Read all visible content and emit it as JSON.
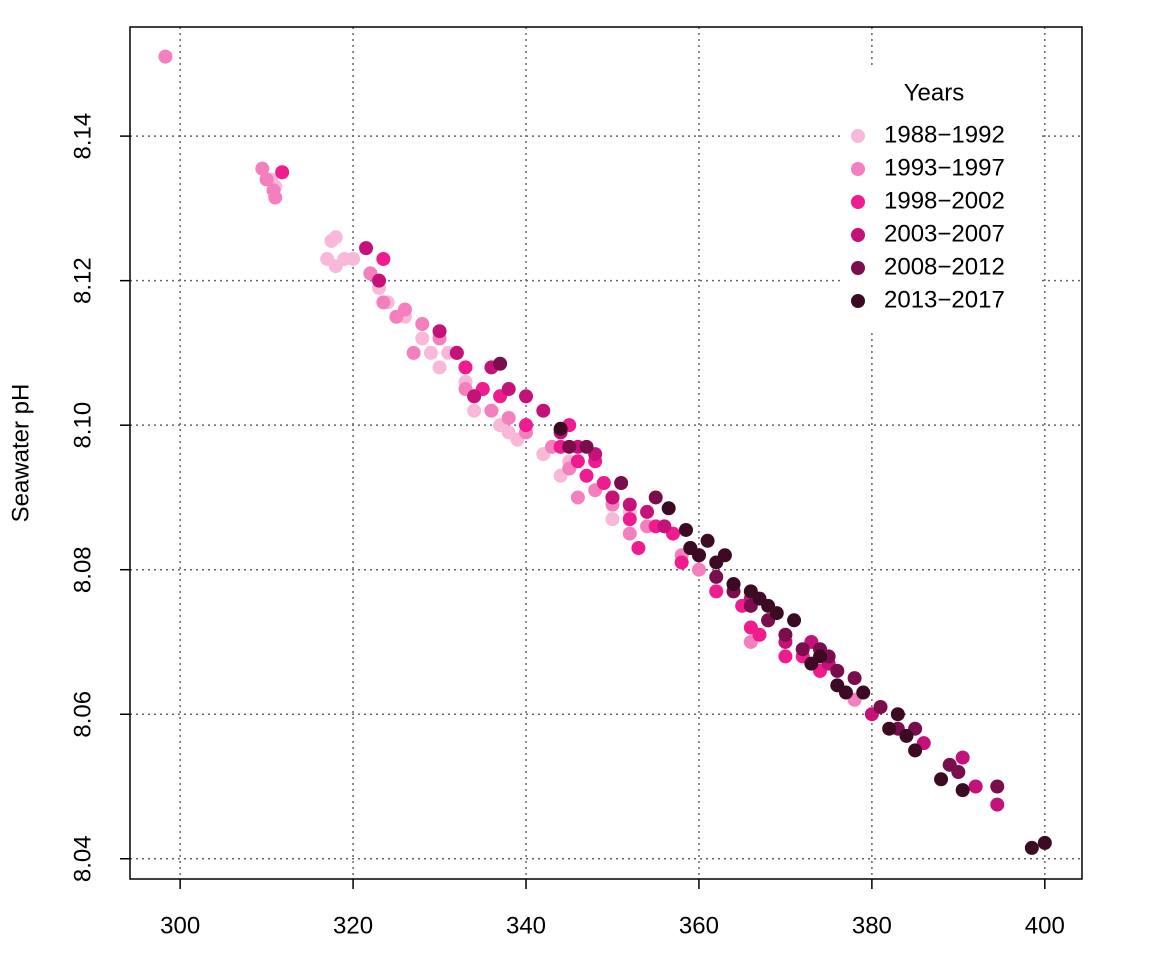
{
  "chart_data": {
    "type": "scatter",
    "ylabel": "Seawater pH",
    "legend_title": "Years",
    "legend": "top-right",
    "grid": true,
    "xlim": [
      294.2,
      404.3
    ],
    "xticks": [
      300,
      320,
      340,
      360,
      380,
      400
    ],
    "ylim": [
      8.0372,
      8.1551
    ],
    "yticks": [
      8.04,
      8.06,
      8.08,
      {
        "value": 8.1,
        "label": "8.10"
      },
      8.12,
      8.14
    ],
    "series": [
      {
        "name": "1988−1992",
        "color": "#f9b8d8",
        "x": [
          317,
          317.5,
          318,
          318,
          319,
          320,
          322,
          323,
          324,
          326,
          328,
          329,
          330,
          331,
          333,
          334,
          337,
          338,
          339,
          340,
          342,
          344,
          345,
          350,
          352,
          311,
          310.5
        ],
        "values": [
          8.123,
          8.1255,
          8.126,
          8.122,
          8.123,
          8.123,
          8.121,
          8.119,
          8.117,
          8.115,
          8.112,
          8.11,
          8.108,
          8.11,
          8.106,
          8.102,
          8.1,
          8.099,
          8.098,
          8.1,
          8.096,
          8.093,
          8.095,
          8.087,
          8.088,
          8.133,
          8.134
        ]
      },
      {
        "name": "1993−1997",
        "color": "#f47fbf",
        "x": [
          298.3,
          309.5,
          310,
          310.8,
          311,
          322,
          323.5,
          325,
          326,
          327,
          328,
          330,
          332,
          333,
          334,
          336,
          338,
          340,
          343,
          345,
          346,
          348,
          350,
          352,
          354,
          358,
          360,
          366,
          378
        ],
        "values": [
          8.151,
          8.1355,
          8.134,
          8.1325,
          8.1315,
          8.121,
          8.117,
          8.115,
          8.116,
          8.11,
          8.114,
          8.112,
          8.11,
          8.105,
          8.104,
          8.102,
          8.101,
          8.099,
          8.097,
          8.094,
          8.09,
          8.091,
          8.089,
          8.085,
          8.086,
          8.082,
          8.08,
          8.07,
          8.062
        ]
      },
      {
        "name": "1998−2002",
        "color": "#f01b8f",
        "x": [
          311.8,
          323.5,
          333,
          335,
          337,
          340,
          344,
          345,
          346,
          347,
          348,
          349,
          350,
          352,
          353,
          355,
          357,
          358,
          362,
          365,
          366,
          367,
          370,
          372,
          374
        ],
        "values": [
          8.135,
          8.123,
          8.108,
          8.105,
          8.104,
          8.1,
          8.097,
          8.1,
          8.095,
          8.093,
          8.095,
          8.092,
          8.09,
          8.087,
          8.083,
          8.086,
          8.085,
          8.081,
          8.077,
          8.075,
          8.072,
          8.071,
          8.068,
          8.068,
          8.066
        ]
      },
      {
        "name": "2003−2007",
        "color": "#c4127a",
        "x": [
          321.5,
          323,
          330,
          332,
          334,
          336,
          338,
          340,
          342,
          344,
          346,
          348,
          350,
          352,
          354,
          356,
          360,
          364,
          366,
          368,
          370,
          373,
          375,
          380,
          386,
          390.5,
          392,
          394.5
        ],
        "values": [
          8.1245,
          8.12,
          8.113,
          8.11,
          8.104,
          8.108,
          8.105,
          8.104,
          8.102,
          8.099,
          8.097,
          8.096,
          8.09,
          8.089,
          8.088,
          8.086,
          8.082,
          8.078,
          8.076,
          8.073,
          8.07,
          8.07,
          8.067,
          8.06,
          8.056,
          8.054,
          8.05,
          8.0475
        ]
      },
      {
        "name": "2008−2012",
        "color": "#7a0e4c",
        "x": [
          337,
          345,
          347,
          351,
          355,
          359,
          362,
          364,
          366,
          368,
          370,
          372,
          374,
          375,
          376,
          378,
          381,
          383,
          385,
          389,
          390,
          394.5
        ],
        "values": [
          8.1085,
          8.097,
          8.097,
          8.092,
          8.09,
          8.083,
          8.079,
          8.077,
          8.075,
          8.073,
          8.071,
          8.069,
          8.069,
          8.068,
          8.066,
          8.065,
          8.061,
          8.058,
          8.058,
          8.053,
          8.052,
          8.05
        ]
      },
      {
        "name": "2013−2017",
        "color": "#3d0a24",
        "x": [
          344,
          356.5,
          358.5,
          359,
          360,
          361,
          362,
          363,
          364,
          366,
          367,
          368,
          369,
          371,
          373,
          374,
          376,
          377,
          379,
          382,
          383,
          384,
          385,
          388,
          390.5,
          398.5,
          400
        ],
        "values": [
          8.0995,
          8.0885,
          8.0855,
          8.083,
          8.082,
          8.084,
          8.081,
          8.082,
          8.078,
          8.077,
          8.076,
          8.075,
          8.074,
          8.073,
          8.067,
          8.068,
          8.064,
          8.063,
          8.063,
          8.058,
          8.06,
          8.057,
          8.055,
          8.051,
          8.0495,
          8.0415,
          8.0422
        ]
      }
    ]
  }
}
